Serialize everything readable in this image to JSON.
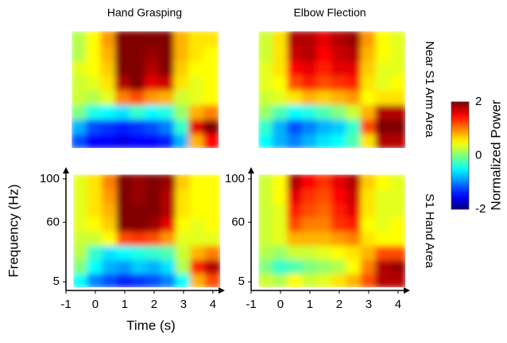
{
  "figure": {
    "column_titles": [
      "Hand Grasping",
      "Elbow Flection"
    ],
    "row_labels": [
      "Near S1 Arm Area",
      "S1 Hand Area"
    ],
    "xlabel": "Time (s)",
    "ylabel": "Frequency (Hz)",
    "colorbar": {
      "label": "Normalized Power",
      "colormap": "jet",
      "lim": [
        -2,
        2
      ],
      "ticks": [
        -2,
        0,
        2
      ]
    }
  },
  "chart_data": [
    {
      "type": "heatmap",
      "xlim": [
        -1,
        4.3
      ],
      "ylim": [
        0,
        105
      ],
      "x": [
        -0.5,
        0,
        0.5,
        1,
        1.5,
        2,
        2.5,
        3,
        3.5,
        4
      ],
      "y": [
        6.5,
        19.5,
        32.5,
        45.5,
        58.5,
        71.5,
        84.5,
        97.5
      ],
      "values": [
        [
          -1.2,
          -1.5,
          -1.5,
          -1.6,
          -1.5,
          -1.5,
          -1.4,
          -0.8,
          0.8,
          1.5
        ],
        [
          -0.8,
          -1.2,
          -1.3,
          -1.4,
          -1.3,
          -1.2,
          -1.0,
          -0.3,
          1.6,
          2.0
        ],
        [
          0.0,
          -0.4,
          -0.5,
          -0.6,
          -0.3,
          -0.5,
          -0.4,
          0.1,
          0.8,
          1.0
        ],
        [
          0.3,
          0.2,
          0.4,
          1.0,
          1.2,
          0.9,
          0.8,
          0.3,
          0.4,
          0.5
        ],
        [
          0.3,
          0.4,
          0.6,
          1.8,
          2.0,
          1.6,
          1.7,
          0.6,
          0.4,
          0.5
        ],
        [
          0.4,
          0.5,
          0.7,
          2.0,
          2.0,
          1.8,
          2.0,
          0.7,
          0.5,
          0.5
        ],
        [
          0.2,
          0.5,
          0.8,
          2.0,
          2.0,
          1.9,
          2.0,
          0.8,
          0.6,
          0.5
        ],
        [
          0.2,
          0.5,
          0.9,
          2.0,
          2.0,
          2.0,
          2.0,
          0.8,
          0.6,
          0.6
        ]
      ]
    },
    {
      "type": "heatmap",
      "xlim": [
        -1,
        4.3
      ],
      "ylim": [
        0,
        105
      ],
      "x": [
        -0.5,
        0,
        0.5,
        1,
        1.5,
        2,
        2.5,
        3,
        3.5,
        4
      ],
      "y": [
        6.5,
        19.5,
        32.5,
        45.5,
        58.5,
        71.5,
        84.5,
        97.5
      ],
      "values": [
        [
          -0.5,
          -0.8,
          -1.0,
          -0.8,
          -0.6,
          -0.5,
          -0.2,
          0.6,
          1.8,
          1.8
        ],
        [
          -0.3,
          -0.8,
          -1.2,
          -1.0,
          -0.8,
          -0.7,
          -0.3,
          1.2,
          2.0,
          2.0
        ],
        [
          0.1,
          -0.2,
          -0.5,
          -0.4,
          -0.2,
          0.0,
          0.3,
          0.8,
          1.8,
          1.8
        ],
        [
          0.3,
          0.4,
          0.6,
          0.8,
          0.7,
          0.8,
          0.9,
          0.5,
          0.6,
          0.6
        ],
        [
          0.4,
          0.5,
          1.2,
          1.4,
          1.2,
          1.3,
          1.4,
          0.6,
          0.4,
          0.5
        ],
        [
          0.4,
          0.6,
          1.5,
          1.6,
          1.4,
          1.6,
          1.6,
          0.7,
          0.4,
          0.4
        ],
        [
          0.3,
          0.6,
          1.7,
          1.8,
          1.5,
          1.7,
          1.8,
          0.8,
          0.5,
          0.4
        ],
        [
          0.3,
          0.6,
          1.8,
          1.8,
          1.6,
          1.8,
          1.9,
          0.9,
          0.5,
          0.4
        ]
      ]
    },
    {
      "type": "heatmap",
      "xlim": [
        -1,
        4.3
      ],
      "ylim": [
        0,
        105
      ],
      "xticks": [
        -1,
        0,
        1,
        2,
        3,
        4
      ],
      "yticks": [
        5,
        60,
        100
      ],
      "x": [
        -0.5,
        0,
        0.5,
        1,
        1.5,
        2,
        2.5,
        3,
        3.5,
        4
      ],
      "y": [
        6.5,
        19.5,
        32.5,
        45.5,
        58.5,
        71.5,
        84.5,
        97.5
      ],
      "values": [
        [
          -0.5,
          -1.0,
          -1.2,
          -1.4,
          -1.3,
          -1.2,
          -1.0,
          -0.5,
          0.8,
          1.2
        ],
        [
          0.0,
          -0.5,
          -0.8,
          -0.9,
          -0.7,
          -0.8,
          -0.6,
          0.2,
          1.4,
          1.8
        ],
        [
          0.2,
          -0.3,
          -0.6,
          -0.5,
          -0.4,
          -0.3,
          -0.2,
          0.3,
          0.8,
          1.0
        ],
        [
          0.3,
          0.3,
          0.5,
          1.2,
          1.3,
          1.2,
          0.9,
          0.4,
          0.4,
          0.4
        ],
        [
          0.4,
          0.5,
          0.7,
          2.0,
          2.0,
          1.9,
          1.6,
          0.5,
          0.4,
          0.5
        ],
        [
          0.4,
          0.6,
          0.8,
          2.0,
          2.0,
          2.0,
          1.8,
          0.6,
          0.5,
          0.5
        ],
        [
          0.4,
          0.6,
          0.9,
          2.0,
          1.9,
          2.0,
          1.8,
          0.6,
          0.5,
          0.5
        ],
        [
          0.4,
          0.6,
          1.0,
          2.0,
          1.9,
          2.0,
          1.9,
          0.7,
          0.5,
          0.5
        ]
      ]
    },
    {
      "type": "heatmap",
      "xlim": [
        -1,
        4.3
      ],
      "ylim": [
        0,
        105
      ],
      "xticks": [
        -1,
        0,
        1,
        2,
        3,
        4
      ],
      "yticks": [
        5,
        60,
        100
      ],
      "x": [
        -0.5,
        0,
        0.5,
        1,
        1.5,
        2,
        2.5,
        3,
        3.5,
        4
      ],
      "y": [
        6.5,
        19.5,
        32.5,
        45.5,
        58.5,
        71.5,
        84.5,
        97.5
      ],
      "values": [
        [
          0.3,
          0.2,
          0.5,
          0.3,
          0.4,
          0.6,
          0.8,
          1.2,
          1.8,
          1.8
        ],
        [
          0.0,
          -0.3,
          -0.2,
          0.0,
          0.1,
          0.2,
          0.5,
          1.0,
          1.8,
          1.9
        ],
        [
          0.2,
          0.1,
          0.3,
          0.3,
          0.4,
          0.5,
          0.6,
          0.8,
          1.2,
          1.2
        ],
        [
          0.3,
          0.4,
          0.8,
          0.8,
          0.8,
          0.9,
          1.0,
          0.6,
          0.5,
          0.5
        ],
        [
          0.3,
          0.4,
          1.2,
          1.0,
          1.0,
          1.3,
          1.4,
          0.5,
          0.4,
          0.5
        ],
        [
          0.3,
          0.4,
          1.4,
          1.2,
          1.1,
          1.4,
          1.6,
          0.6,
          0.4,
          0.4
        ],
        [
          0.3,
          0.5,
          1.6,
          1.3,
          1.2,
          1.5,
          1.7,
          0.6,
          0.4,
          0.4
        ],
        [
          0.3,
          0.5,
          1.8,
          1.5,
          1.3,
          1.6,
          1.8,
          0.7,
          0.5,
          0.4
        ]
      ]
    }
  ]
}
